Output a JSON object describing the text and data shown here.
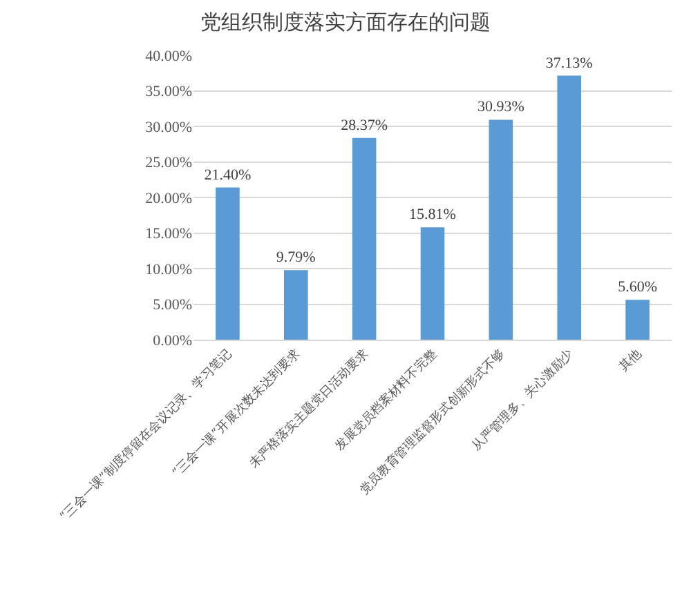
{
  "chart_data": {
    "type": "bar",
    "title": "党组织制度落实方面存在的问题",
    "categories": [
      "“三会一课”制度停留在会议记录、学习笔记",
      "“三会一课”开展次数未达到要求",
      "未严格落实主题党日活动要求",
      "发展党员档案材料不完整",
      "党员教育管理监督形式创新形式不够",
      "从严管理多、关心激励少",
      "其他"
    ],
    "values": [
      21.4,
      9.79,
      28.37,
      15.81,
      30.93,
      37.13,
      5.6
    ],
    "value_labels": [
      "21.40%",
      "9.79%",
      "28.37%",
      "15.81%",
      "30.93%",
      "37.13%",
      "5.60%"
    ],
    "color": "#5b9bd5",
    "ylim": [
      0,
      40
    ],
    "yticks": [
      {
        "value": 0,
        "label": "0.00%"
      },
      {
        "value": 5,
        "label": "5.00%"
      },
      {
        "value": 10,
        "label": "10.00%"
      },
      {
        "value": 15,
        "label": "15.00%"
      },
      {
        "value": 20,
        "label": "20.00%"
      },
      {
        "value": 25,
        "label": "25.00%"
      },
      {
        "value": 30,
        "label": "30.00%"
      },
      {
        "value": 35,
        "label": "35.00%"
      },
      {
        "value": 40,
        "label": "40.00%"
      }
    ],
    "grid": "y"
  }
}
